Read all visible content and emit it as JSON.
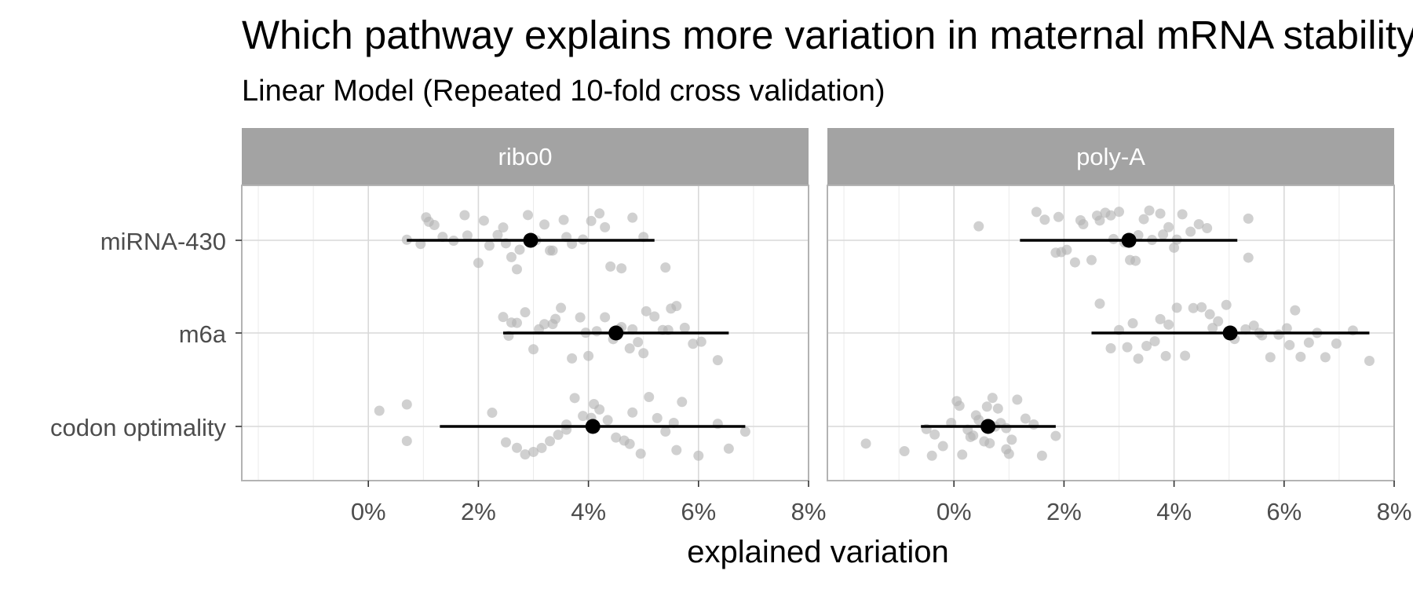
{
  "chart_data": {
    "type": "scatter",
    "title": "Which pathway explains more variation in maternal mRNA stability",
    "subtitle": "Linear Model (Repeated 10-fold cross validation)",
    "xlabel": "explained variation",
    "ylabel": "",
    "x_unit": "%",
    "xlim": [
      -2.3,
      8
    ],
    "x_ticks": [
      0,
      2,
      4,
      6,
      8
    ],
    "x_tick_labels": [
      "0%",
      "2%",
      "4%",
      "6%",
      "8%"
    ],
    "categories": [
      "miRNA-430",
      "m6a",
      "codon optimality"
    ],
    "grid": true,
    "colors": {
      "strip_bg": "#a3a3a3",
      "point": "#b3b3b3",
      "summary": "#000000",
      "grid_major": "#d9d9d9",
      "grid_minor": "#ebebeb",
      "panel_border": "#b3b3b3"
    },
    "panels": [
      {
        "name": "ribo0",
        "summary": [
          {
            "category": "miRNA-430",
            "mean": 2.95,
            "low": 0.7,
            "high": 5.2
          },
          {
            "category": "m6a",
            "mean": 4.5,
            "low": 2.45,
            "high": 6.55
          },
          {
            "category": "codon optimality",
            "mean": 4.08,
            "low": 1.3,
            "high": 6.85
          }
        ],
        "points": [
          {
            "category": "miRNA-430",
            "x": [
              0.7,
              0.95,
              1.05,
              1.2,
              1.35,
              1.55,
              1.75,
              2.0,
              2.2,
              2.35,
              2.45,
              2.6,
              2.75,
              2.9,
              3.05,
              3.2,
              3.35,
              3.55,
              3.7,
              3.9,
              4.05,
              4.2,
              4.4,
              4.6,
              4.8,
              5.0,
              5.4,
              1.1,
              1.8,
              2.5,
              3.3,
              4.3,
              2.1,
              2.7,
              3.6
            ]
          },
          {
            "category": "m6a",
            "x": [
              2.45,
              2.55,
              2.7,
              2.85,
              3.0,
              3.2,
              3.35,
              3.5,
              3.7,
              3.85,
              4.0,
              4.15,
              4.3,
              4.45,
              4.6,
              4.75,
              4.9,
              5.05,
              5.2,
              5.35,
              5.5,
              5.6,
              5.75,
              5.9,
              6.05,
              6.35,
              2.6,
              3.1,
              3.95,
              4.55,
              5.0,
              5.45,
              4.8,
              3.4
            ]
          },
          {
            "category": "codon optimality",
            "x": [
              0.2,
              0.7,
              0.7,
              2.25,
              2.5,
              2.7,
              2.85,
              3.0,
              3.15,
              3.3,
              3.45,
              3.6,
              3.75,
              3.9,
              4.05,
              4.2,
              4.35,
              4.5,
              4.65,
              4.8,
              4.95,
              5.1,
              5.25,
              5.4,
              5.55,
              5.7,
              6.0,
              6.35,
              6.55,
              6.85,
              3.6,
              4.1,
              4.75,
              5.6
            ]
          }
        ]
      },
      {
        "name": "poly-A",
        "summary": [
          {
            "category": "miRNA-430",
            "mean": 3.18,
            "low": 1.2,
            "high": 5.15
          },
          {
            "category": "m6a",
            "mean": 5.02,
            "low": 2.5,
            "high": 7.55
          },
          {
            "category": "codon optimality",
            "mean": 0.62,
            "low": -0.6,
            "high": 1.85
          }
        ],
        "points": [
          {
            "category": "miRNA-430",
            "x": [
              0.45,
              1.5,
              1.65,
              1.85,
              1.95,
              2.05,
              2.2,
              2.35,
              2.5,
              2.65,
              2.75,
              2.85,
              3.0,
              3.1,
              3.2,
              3.3,
              3.45,
              3.6,
              3.75,
              3.9,
              4.05,
              4.15,
              4.3,
              4.45,
              4.6,
              5.35,
              5.35,
              2.3,
              3.55,
              4.0,
              2.6,
              3.8,
              1.9,
              2.9,
              3.35
            ]
          },
          {
            "category": "m6a",
            "x": [
              2.65,
              2.85,
              3.0,
              3.15,
              3.25,
              3.35,
              3.5,
              3.65,
              3.75,
              3.9,
              4.05,
              4.2,
              4.35,
              4.5,
              4.65,
              4.8,
              4.95,
              5.1,
              5.3,
              5.45,
              5.6,
              5.75,
              5.9,
              6.05,
              6.2,
              6.3,
              6.45,
              6.6,
              6.75,
              6.95,
              7.25,
              7.55,
              3.85,
              4.7,
              5.55,
              6.1
            ]
          },
          {
            "category": "codon optimality",
            "x": [
              -1.6,
              -0.9,
              -0.5,
              -0.4,
              -0.35,
              -0.2,
              -0.05,
              0.05,
              0.15,
              0.25,
              0.35,
              0.45,
              0.55,
              0.65,
              0.75,
              0.85,
              0.95,
              1.05,
              1.15,
              1.3,
              1.45,
              1.6,
              1.85,
              0.1,
              0.3,
              0.6,
              0.8,
              0.95,
              0.4,
              0.7,
              1.0
            ]
          }
        ]
      }
    ]
  }
}
